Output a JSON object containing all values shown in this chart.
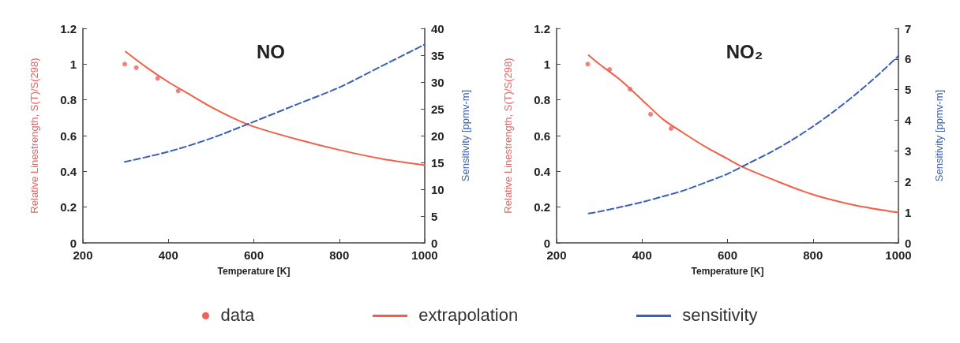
{
  "chart_data": [
    {
      "type": "line",
      "title": "NO",
      "xlabel": "Temperature [K]",
      "ylabel": "Relative Linestrength, S(T)/S(298)",
      "y2label": "Sensitivity [ppmv-m]",
      "xlim": [
        200,
        1000
      ],
      "xticks": [
        200,
        400,
        600,
        800,
        1000
      ],
      "ylim": [
        0,
        1.2
      ],
      "yticks": [
        0,
        0.2,
        0.4,
        0.6,
        0.8,
        1,
        1.2
      ],
      "y2lim": [
        0,
        40
      ],
      "y2ticks": [
        0,
        5,
        10,
        15,
        20,
        25,
        30,
        35,
        40
      ],
      "grid": false,
      "legend": "bottom",
      "series": [
        {
          "name": "data",
          "type": "scatter",
          "marker": "circle",
          "color": "#f06060",
          "x": [
            298,
            325,
            375,
            423
          ],
          "values": [
            1.0,
            0.98,
            0.92,
            0.85
          ]
        },
        {
          "name": "extrapolation",
          "marker": "none",
          "line_style": "solid",
          "color": "#f06048",
          "x": [
            300,
            350,
            400,
            450,
            500,
            550,
            600,
            700,
            800,
            900,
            1000
          ],
          "values": [
            1.07,
            0.98,
            0.9,
            0.83,
            0.76,
            0.7,
            0.65,
            0.58,
            0.52,
            0.47,
            0.435
          ]
        },
        {
          "name": "sensitivity",
          "marker": "none",
          "line_style": "dashed",
          "axis": "y2",
          "color": "#3a5fb8",
          "x": [
            298,
            400,
            500,
            600,
            700,
            800,
            900,
            1000
          ],
          "values": [
            15.1,
            17,
            19.5,
            22.6,
            25.8,
            29,
            33,
            37
          ]
        }
      ]
    },
    {
      "type": "line",
      "title": "NO₂",
      "xlabel": "Temperature [K]",
      "ylabel": "Relative Linestrength, S(T)/S(298)",
      "y2label": "Sensitivity [ppmv-m]",
      "xlim": [
        200,
        1000
      ],
      "xticks": [
        200,
        400,
        600,
        800,
        1000
      ],
      "ylim": [
        0,
        1.2
      ],
      "yticks": [
        0,
        0.2,
        0.4,
        0.6,
        0.8,
        1,
        1.2
      ],
      "y2lim": [
        0,
        7
      ],
      "y2ticks": [
        0,
        1,
        2,
        3,
        4,
        5,
        6,
        7
      ],
      "grid": false,
      "series": [
        {
          "type": "scatter",
          "marker": "circle",
          "color": "#f06060",
          "x": [
            273,
            324,
            372,
            420,
            468
          ],
          "values": [
            1.0,
            0.97,
            0.86,
            0.72,
            0.64
          ]
        },
        {
          "marker": "none",
          "line_style": "solid",
          "color": "#f06048",
          "x": [
            275,
            300,
            350,
            400,
            450,
            500,
            550,
            600,
            635,
            700,
            800,
            900,
            1000
          ],
          "values": [
            1.05,
            1.0,
            0.91,
            0.8,
            0.69,
            0.61,
            0.535,
            0.47,
            0.425,
            0.36,
            0.27,
            0.21,
            0.17
          ]
        },
        {
          "marker": "none",
          "line_style": "dashed",
          "axis": "y2",
          "color": "#3a5fb8",
          "x": [
            275,
            300,
            350,
            400,
            450,
            500,
            550,
            600,
            650,
            700,
            750,
            800,
            850,
            900,
            950,
            1000
          ],
          "values": [
            0.96,
            1.02,
            1.17,
            1.33,
            1.52,
            1.72,
            1.98,
            2.25,
            2.6,
            2.95,
            3.35,
            3.8,
            4.3,
            4.85,
            5.45,
            6.1
          ]
        }
      ]
    }
  ]
}
